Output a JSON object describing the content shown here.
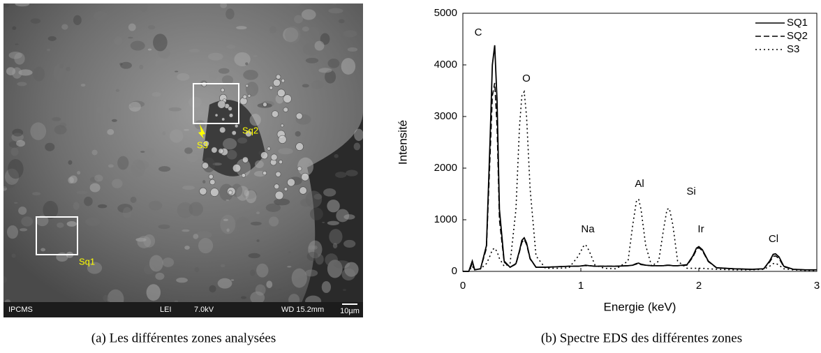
{
  "image": {
    "labels": {
      "sq1": "Sq1",
      "sq2": "Sq2",
      "s3": "S3"
    },
    "info_bar": {
      "lab": "IPCMS",
      "mode": "LEI",
      "voltage": "7.0kV",
      "wd": "WD 15.2mm",
      "scale": "10µm"
    },
    "caption": "(a) Les différentes zones analysées"
  },
  "chart_caption": "(b) Spectre EDS des différentes zones",
  "chart_data": {
    "type": "line",
    "xlabel": "Energie (keV)",
    "ylabel": "Intensité",
    "peak_labels": [
      "C",
      "O",
      "Na",
      "Al",
      "Si",
      "Ir",
      "Cl"
    ],
    "x": [
      0,
      0.05,
      0.08,
      0.1,
      0.15,
      0.2,
      0.23,
      0.25,
      0.27,
      0.29,
      0.31,
      0.35,
      0.4,
      0.45,
      0.48,
      0.5,
      0.52,
      0.54,
      0.57,
      0.62,
      0.7,
      0.8,
      0.9,
      0.98,
      1.02,
      1.04,
      1.07,
      1.12,
      1.2,
      1.3,
      1.4,
      1.44,
      1.47,
      1.49,
      1.51,
      1.55,
      1.6,
      1.66,
      1.7,
      1.73,
      1.75,
      1.78,
      1.82,
      1.9,
      1.95,
      1.98,
      2.0,
      2.03,
      2.08,
      2.15,
      2.3,
      2.45,
      2.55,
      2.6,
      2.63,
      2.65,
      2.68,
      2.72,
      2.8,
      2.9,
      3.0
    ],
    "series": [
      {
        "name": "SQ1",
        "color": "#000000",
        "linestyle": "solid",
        "values": [
          0,
          0,
          200,
          30,
          50,
          500,
          2500,
          4000,
          4380,
          3300,
          1200,
          200,
          80,
          150,
          400,
          600,
          650,
          550,
          250,
          80,
          80,
          90,
          100,
          100,
          110,
          120,
          110,
          100,
          100,
          100,
          110,
          120,
          150,
          160,
          140,
          120,
          110,
          110,
          110,
          120,
          120,
          110,
          110,
          130,
          300,
          450,
          480,
          420,
          200,
          70,
          50,
          40,
          50,
          200,
          330,
          340,
          280,
          100,
          40,
          30,
          30
        ]
      },
      {
        "name": "SQ2",
        "color": "#000000",
        "linestyle": "dashed",
        "values": [
          0,
          0,
          150,
          30,
          50,
          450,
          2200,
          3400,
          3650,
          2800,
          1000,
          180,
          80,
          140,
          380,
          560,
          620,
          520,
          240,
          80,
          80,
          90,
          100,
          100,
          110,
          110,
          110,
          100,
          100,
          100,
          110,
          120,
          140,
          150,
          130,
          120,
          110,
          110,
          110,
          115,
          115,
          110,
          110,
          120,
          280,
          420,
          460,
          400,
          190,
          70,
          50,
          40,
          50,
          180,
          290,
          300,
          250,
          90,
          40,
          30,
          30
        ]
      },
      {
        "name": "S3",
        "color": "#000000",
        "linestyle": "dotted",
        "values": [
          0,
          0,
          100,
          30,
          50,
          150,
          300,
          420,
          450,
          380,
          250,
          100,
          150,
          1200,
          2800,
          3400,
          3480,
          3000,
          1600,
          300,
          60,
          60,
          70,
          300,
          480,
          520,
          400,
          120,
          60,
          50,
          200,
          900,
          1350,
          1400,
          1200,
          500,
          100,
          200,
          800,
          1200,
          1220,
          900,
          200,
          60,
          60,
          60,
          60,
          60,
          50,
          40,
          30,
          30,
          40,
          100,
          150,
          160,
          120,
          50,
          30,
          20,
          20
        ]
      }
    ],
    "xlim": [
      0,
      3
    ],
    "ylim": [
      0,
      5000
    ],
    "xticks": [
      0,
      1,
      2,
      3
    ],
    "yticks": [
      0,
      1000,
      2000,
      3000,
      4000,
      5000
    ],
    "legend": "upper right"
  }
}
